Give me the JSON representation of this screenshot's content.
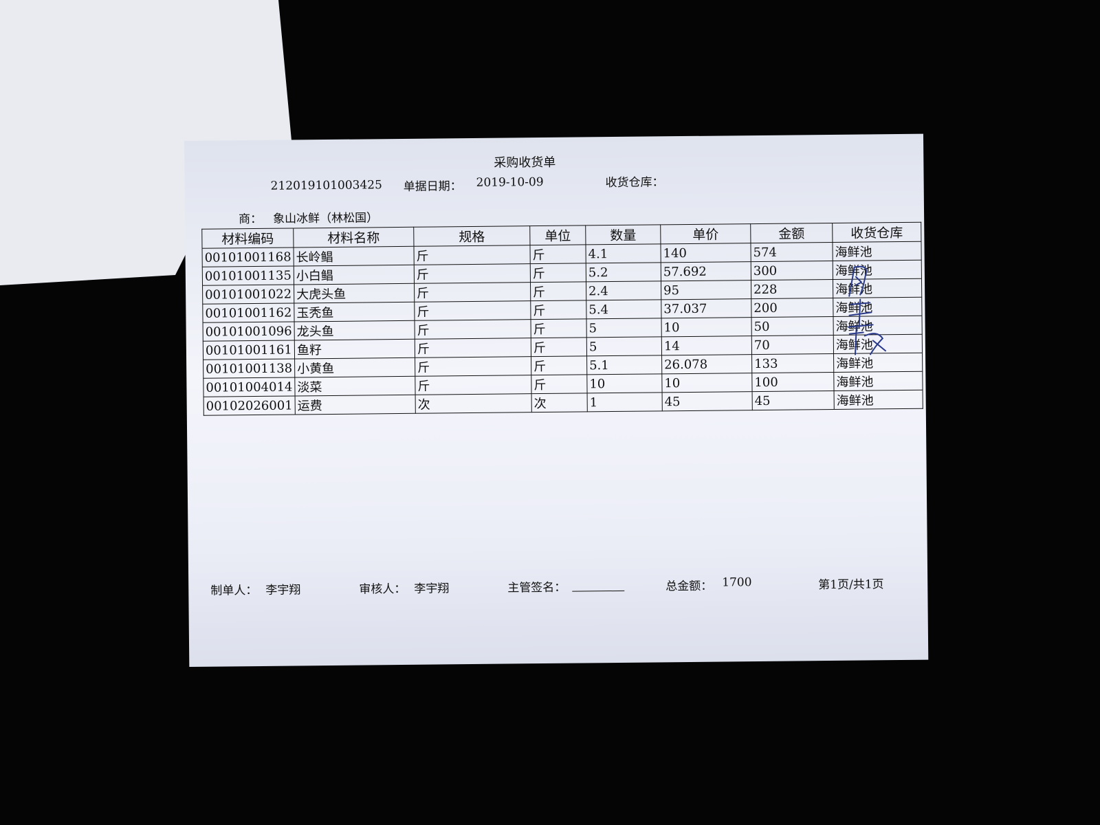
{
  "document": {
    "title": "采购收货单",
    "order_no": "212019101003425",
    "date_label": "单据日期：",
    "date": "2019-10-09",
    "warehouse_label": "收货仓库：",
    "supplier_label": "商：",
    "supplier": "象山冰鲜（林松国）"
  },
  "table": {
    "columns": [
      "材料编码",
      "材料名称",
      "规格",
      "单位",
      "数量",
      "单价",
      "金额",
      "收货仓库"
    ],
    "rows": [
      [
        "00101001168",
        "长岭鲳",
        "斤",
        "斤",
        "4.1",
        "140",
        "574",
        "海鲜池"
      ],
      [
        "00101001135",
        "小白鲳",
        "斤",
        "斤",
        "5.2",
        "57.692",
        "300",
        "海鲜池"
      ],
      [
        "00101001022",
        "大虎头鱼",
        "斤",
        "斤",
        "2.4",
        "95",
        "228",
        "海鲜池"
      ],
      [
        "00101001162",
        "玉秃鱼",
        "斤",
        "斤",
        "5.4",
        "37.037",
        "200",
        "海鲜池"
      ],
      [
        "00101001096",
        "龙头鱼",
        "斤",
        "斤",
        "5",
        "10",
        "50",
        "海鲜池"
      ],
      [
        "00101001161",
        "鱼籽",
        "斤",
        "斤",
        "5",
        "14",
        "70",
        "海鲜池"
      ],
      [
        "00101001138",
        "小黄鱼",
        "斤",
        "斤",
        "5.1",
        "26.078",
        "133",
        "海鲜池"
      ],
      [
        "00101004014",
        "淡菜",
        "斤",
        "斤",
        "10",
        "10",
        "100",
        "海鲜池"
      ],
      [
        "00102026001",
        "运费",
        "次",
        "次",
        "1",
        "45",
        "45",
        "海鲜池"
      ]
    ]
  },
  "footer": {
    "maker_label": "制单人：",
    "maker": "李宇翔",
    "reviewer_label": "审核人：",
    "reviewer": "李宇翔",
    "supervisor_label": "主管签名：",
    "total_label": "总金额：",
    "total": "1700",
    "page": "第1页/共1页"
  },
  "colors": {
    "background": "#050505",
    "paper": "#eef0f8",
    "ink": "#111111",
    "signature_ink": "#2a3a8a"
  }
}
